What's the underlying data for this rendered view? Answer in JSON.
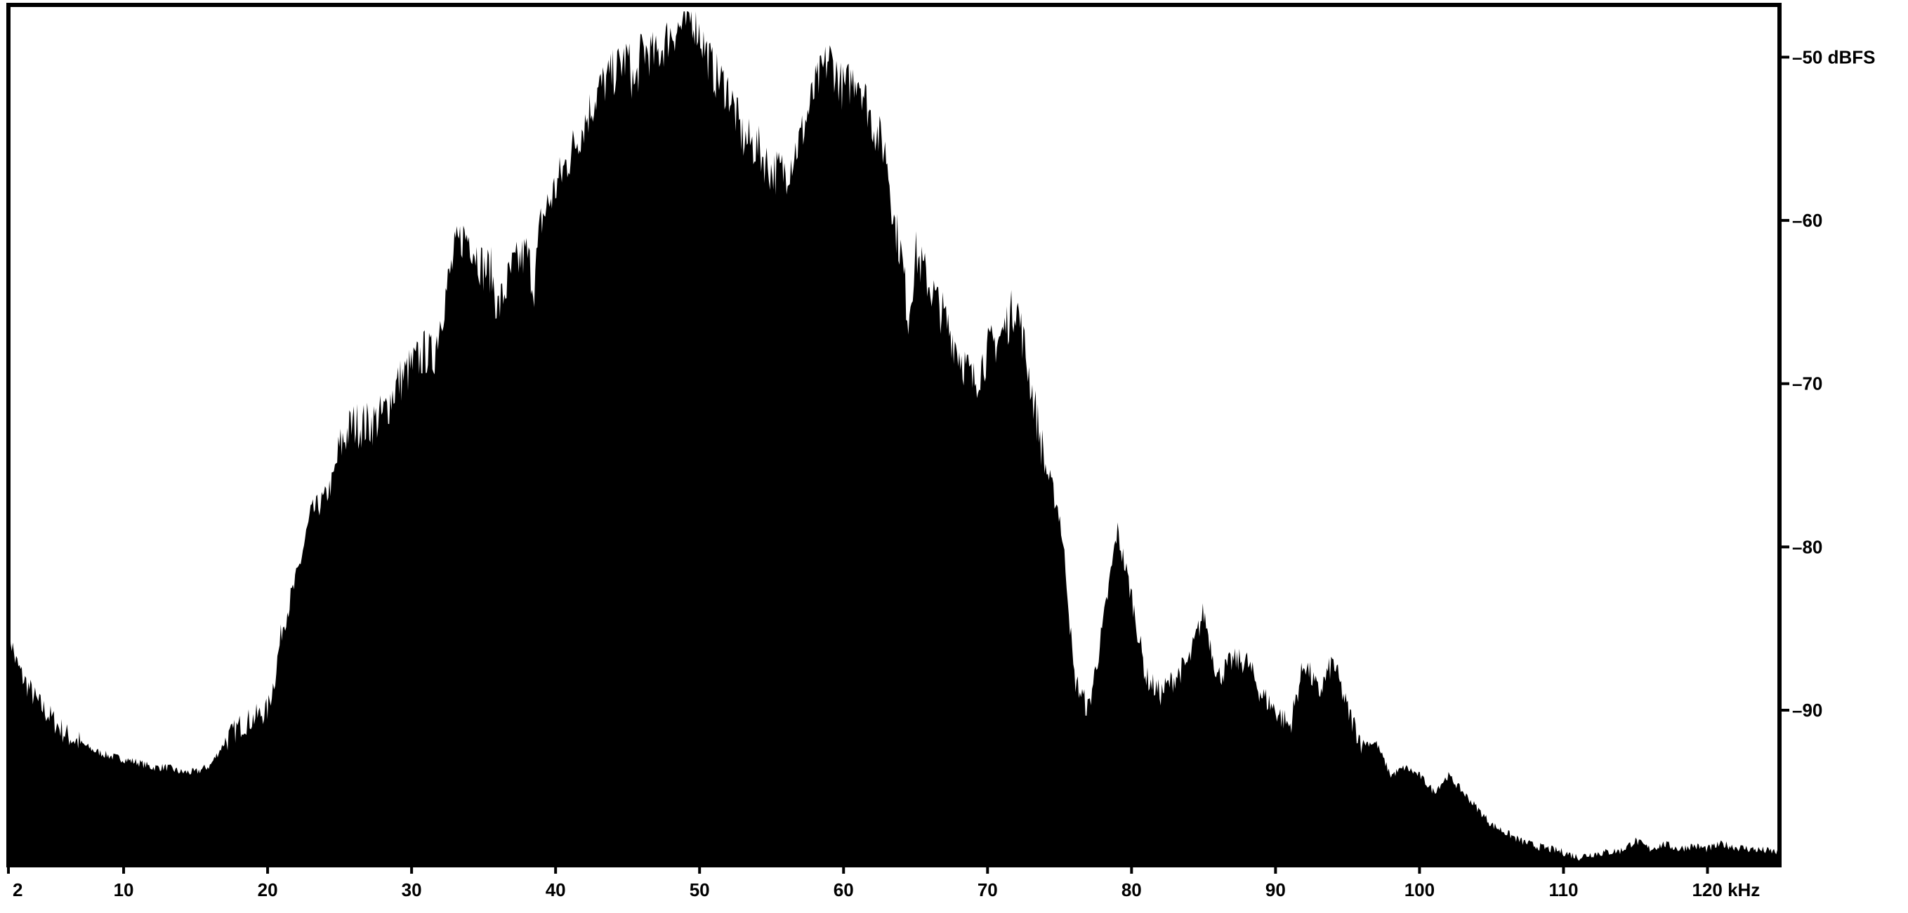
{
  "chart_data": {
    "type": "area",
    "title": "",
    "xlabel": "",
    "ylabel": "",
    "x_unit": "kHz",
    "y_unit": "dBFS",
    "xlim": [
      2,
      125
    ],
    "ylim": [
      -99.5,
      -46.8
    ],
    "x_ticks": [
      2,
      10,
      20,
      30,
      40,
      50,
      60,
      70,
      80,
      90,
      100,
      110,
      120
    ],
    "x_tick_labels": [
      "2",
      "10",
      "20",
      "30",
      "40",
      "50",
      "60",
      "70",
      "80",
      "90",
      "100",
      "110",
      "120 kHz"
    ],
    "y_ticks": [
      -50,
      -60,
      -70,
      -80,
      -90
    ],
    "y_tick_labels": [
      "–50 dBFS",
      "–60",
      "–70",
      "–80",
      "–90"
    ],
    "grid": false,
    "fill_color": "#000000",
    "series": [
      {
        "values": [
          [
            2,
            -85
          ],
          [
            2.5,
            -87
          ],
          [
            3,
            -88
          ],
          [
            4,
            -89.5
          ],
          [
            5,
            -90.5
          ],
          [
            6,
            -91.5
          ],
          [
            7,
            -92
          ],
          [
            8,
            -92.5
          ],
          [
            9,
            -92.8
          ],
          [
            10,
            -93
          ],
          [
            11,
            -93.2
          ],
          [
            12,
            -93.5
          ],
          [
            13,
            -93.5
          ],
          [
            14,
            -93.8
          ],
          [
            15,
            -93.8
          ],
          [
            16,
            -93.4
          ],
          [
            17,
            -92
          ],
          [
            18,
            -91
          ],
          [
            19,
            -90.5
          ],
          [
            20,
            -90
          ],
          [
            20.5,
            -88
          ],
          [
            21,
            -85
          ],
          [
            22,
            -82
          ],
          [
            22.5,
            -80
          ],
          [
            23,
            -78
          ],
          [
            24,
            -77
          ],
          [
            24.5,
            -76
          ],
          [
            25,
            -74
          ],
          [
            25.5,
            -73
          ],
          [
            26,
            -72.5
          ],
          [
            27,
            -72.5
          ],
          [
            28,
            -72
          ],
          [
            29,
            -70
          ],
          [
            30,
            -69
          ],
          [
            31,
            -68
          ],
          [
            31.5,
            -68.5
          ],
          [
            32,
            -66
          ],
          [
            33,
            -62
          ],
          [
            33.5,
            -61
          ],
          [
            34,
            -61
          ],
          [
            35,
            -63
          ],
          [
            35.5,
            -63
          ],
          [
            36,
            -65.5
          ],
          [
            37,
            -63
          ],
          [
            38,
            -62
          ],
          [
            38.5,
            -64
          ],
          [
            39,
            -60
          ],
          [
            39.5,
            -59
          ],
          [
            40,
            -58
          ],
          [
            41,
            -56
          ],
          [
            42,
            -54
          ],
          [
            43,
            -52
          ],
          [
            44,
            -51
          ],
          [
            45,
            -50
          ],
          [
            45.5,
            -52
          ],
          [
            46,
            -49.5
          ],
          [
            47,
            -50
          ],
          [
            48,
            -48.5
          ],
          [
            49,
            -48
          ],
          [
            49.5,
            -47.5
          ],
          [
            50,
            -48.5
          ],
          [
            51,
            -51
          ],
          [
            52,
            -52
          ],
          [
            53,
            -55
          ],
          [
            54,
            -55.5
          ],
          [
            55,
            -57
          ],
          [
            56,
            -57
          ],
          [
            57,
            -55
          ],
          [
            58,
            -52
          ],
          [
            59,
            -50
          ],
          [
            60,
            -52
          ],
          [
            61,
            -51
          ],
          [
            62,
            -54
          ],
          [
            63,
            -56
          ],
          [
            63.5,
            -60
          ],
          [
            64,
            -62
          ],
          [
            64.5,
            -66
          ],
          [
            65,
            -62
          ],
          [
            66,
            -64
          ],
          [
            67,
            -66
          ],
          [
            68,
            -68
          ],
          [
            69,
            -70
          ],
          [
            70,
            -68
          ],
          [
            71,
            -67
          ],
          [
            72,
            -65
          ],
          [
            73,
            -70
          ],
          [
            74,
            -75
          ],
          [
            75,
            -78
          ],
          [
            75.5,
            -82
          ],
          [
            76,
            -88
          ],
          [
            77,
            -90
          ],
          [
            78,
            -85
          ],
          [
            79,
            -79
          ],
          [
            80,
            -83
          ],
          [
            81,
            -88
          ],
          [
            82,
            -89
          ],
          [
            83,
            -88
          ],
          [
            84,
            -87
          ],
          [
            85,
            -84
          ],
          [
            86,
            -88
          ],
          [
            87,
            -87
          ],
          [
            88,
            -87
          ],
          [
            89,
            -89
          ],
          [
            90,
            -90
          ],
          [
            91,
            -91
          ],
          [
            92,
            -87
          ],
          [
            93,
            -89
          ],
          [
            94,
            -87
          ],
          [
            95,
            -90
          ],
          [
            96,
            -92
          ],
          [
            97,
            -92
          ],
          [
            98,
            -94
          ],
          [
            99,
            -93.5
          ],
          [
            100,
            -94
          ],
          [
            101,
            -95
          ],
          [
            102,
            -94
          ],
          [
            103,
            -95
          ],
          [
            104,
            -96
          ],
          [
            105,
            -97
          ],
          [
            106,
            -97.5
          ],
          [
            107,
            -98
          ],
          [
            108,
            -98.3
          ],
          [
            109,
            -98.5
          ],
          [
            110,
            -98.7
          ],
          [
            111,
            -99
          ],
          [
            112,
            -98.8
          ],
          [
            113,
            -98.7
          ],
          [
            114,
            -98.6
          ],
          [
            115,
            -98
          ],
          [
            116,
            -98.5
          ],
          [
            117,
            -98.2
          ],
          [
            118,
            -98.5
          ],
          [
            119,
            -98.3
          ],
          [
            120,
            -98.5
          ],
          [
            121,
            -98.2
          ],
          [
            122,
            -98.4
          ],
          [
            123,
            -98.5
          ],
          [
            124,
            -98.6
          ],
          [
            125,
            -98.7
          ]
        ]
      }
    ]
  }
}
